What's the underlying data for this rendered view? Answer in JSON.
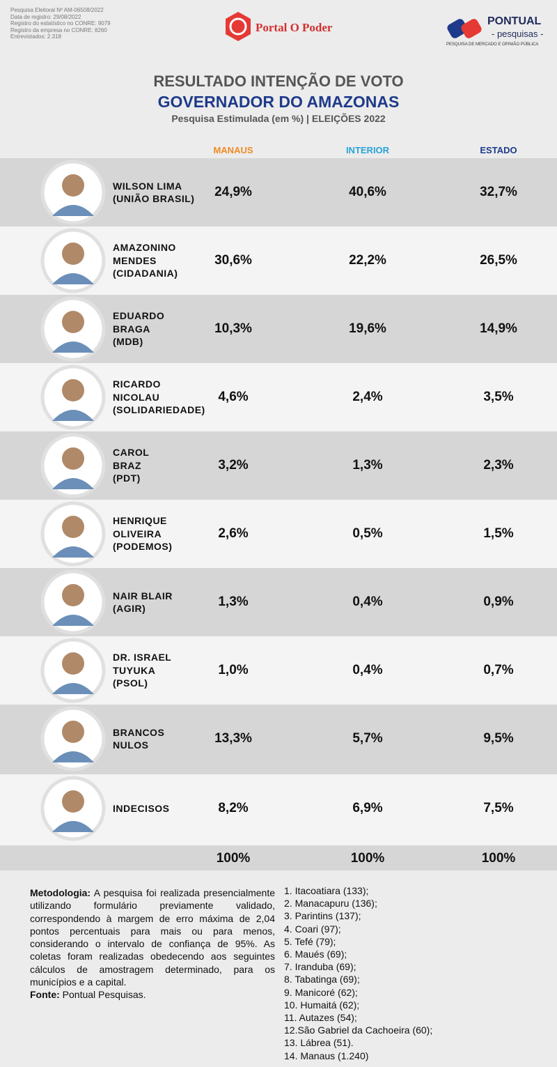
{
  "header": {
    "registry": [
      "Pesquisa Eleitoral Nº AM-06508/2022",
      "Data de registro: 29/08/2022",
      "Registro do estatístico no CONRE: 9079",
      "Registro da empresa no CONRE: 8260",
      "Entrevistados: 2.318"
    ],
    "portal_logo": "Portal O Poder",
    "pontual_logo": "PONTUAL",
    "pontual_sub": "- pesquisas -",
    "pontual_tagline": "PESQUISA DE MERCADO E OPINIÃO PÚBLICA"
  },
  "title": {
    "line1": "RESULTADO INTENÇÃO DE VOTO",
    "line2": "GOVERNADOR DO AMAZONAS",
    "line3": "Pesquisa Estimulada (em %) | ELEIÇÕES 2022"
  },
  "table": {
    "columns": [
      "MANAUS",
      "INTERIOR",
      "ESTADO"
    ],
    "rows": [
      {
        "name": [
          "WILSON LIMA",
          "(UNIÃO BRASIL)"
        ],
        "values": [
          "24,9%",
          "40,6%",
          "32,7%"
        ]
      },
      {
        "name": [
          "AMAZONINO",
          "MENDES",
          "(CIDADANIA)"
        ],
        "values": [
          "30,6%",
          "22,2%",
          "26,5%"
        ]
      },
      {
        "name": [
          "EDUARDO",
          "BRAGA",
          "(MDB)"
        ],
        "values": [
          "10,3%",
          "19,6%",
          "14,9%"
        ]
      },
      {
        "name": [
          "RICARDO",
          "NICOLAU",
          "(SOLIDARIEDADE)"
        ],
        "values": [
          "4,6%",
          "2,4%",
          "3,5%"
        ]
      },
      {
        "name": [
          "CAROL",
          "BRAZ",
          "(PDT)"
        ],
        "values": [
          "3,2%",
          "1,3%",
          "2,3%"
        ]
      },
      {
        "name": [
          "HENRIQUE",
          "OLIVEIRA",
          "(PODEMOS)"
        ],
        "values": [
          "2,6%",
          "0,5%",
          "1,5%"
        ]
      },
      {
        "name": [
          "NAIR BLAIR",
          "(AGIR)"
        ],
        "values": [
          "1,3%",
          "0,4%",
          "0,9%"
        ]
      },
      {
        "name": [
          "DR. ISRAEL",
          "TUYUKA",
          "(PSOL)"
        ],
        "values": [
          "1,0%",
          "0,4%",
          "0,7%"
        ]
      },
      {
        "name": [
          "BRANCOS",
          "NULOS"
        ],
        "values": [
          "13,3%",
          "5,7%",
          "9,5%"
        ]
      },
      {
        "name": [
          "INDECISOS"
        ],
        "values": [
          "8,2%",
          "6,9%",
          "7,5%"
        ]
      }
    ],
    "totals": [
      "100%",
      "100%",
      "100%"
    ]
  },
  "methodology": {
    "label": "Metodologia:",
    "text": "A pesquisa foi realizada presencialmente utilizando formulário previamente validado, correspondendo à margem de erro máxima de 2,04 pontos percentuais para mais ou para menos, considerando o intervalo de confiança de 95%. As coletas foram realizadas obedecendo aos seguintes cálculos de amostragem determinado, para os municípios e a capital.",
    "source_label": "Fonte:",
    "source": "Pontual Pesquisas."
  },
  "municipalities": [
    "1. Itacoatiara (133);",
    "2. Manacapuru (136);",
    "3. Parintins (137);",
    "4. Coari (97);",
    "5. Tefé (79);",
    "6. Maués (69);",
    "7. Iranduba (69);",
    "8. Tabatinga (69);",
    "9. Manicoré (62);",
    "10. Humaitá (62);",
    "11. Autazes (54);",
    "12.São Gabriel da Cachoeira (60);",
    "13. Lábrea (51).",
    "14. Manaus (1.240)"
  ]
}
